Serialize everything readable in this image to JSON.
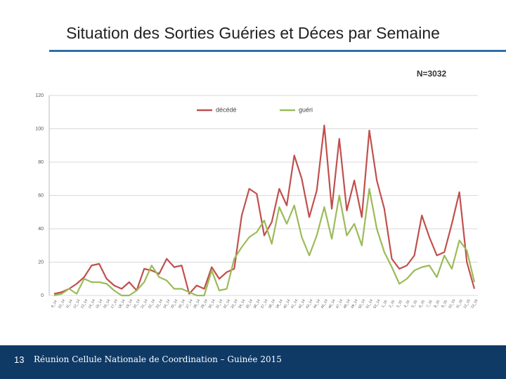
{
  "title": "Situation des Sorties Guéries et Déces par Semaine",
  "page_number": "13",
  "footer": "Réunion Cellule Nationale de Coordination – Guinée 2015",
  "chart_data": {
    "type": "line",
    "annotation": "N=3032",
    "categories": [
      "9_14",
      "10_14",
      "11_14",
      "12_14",
      "13_14",
      "14_14",
      "15_14",
      "16_14",
      "17_14",
      "18_14",
      "19_14",
      "20_14",
      "21_14",
      "22_14",
      "23_14",
      "24_14",
      "25_14",
      "26_14",
      "27_14",
      "28_14",
      "29_14",
      "30_14",
      "31_14",
      "32_14",
      "33_14",
      "34_14",
      "35_14",
      "36_14",
      "37_14",
      "38_14",
      "39_14",
      "40_14",
      "41_14",
      "42_14",
      "43_14",
      "44_14",
      "45_14",
      "46_14",
      "47_14",
      "48_14",
      "49_14",
      "50_14",
      "51_14",
      "52_14",
      "1_15",
      "2_15",
      "3_15",
      "4_15",
      "5_15",
      "6_15",
      "7_15",
      "8_15",
      "9_15",
      "10_15",
      "11_15",
      "12_15",
      "13_15"
    ],
    "series": [
      {
        "name": "décédé",
        "color": "#c0504d",
        "values": [
          1,
          2,
          4,
          7,
          11,
          18,
          19,
          10,
          6,
          4,
          8,
          3,
          16,
          15,
          13,
          22,
          17,
          18,
          1,
          6,
          4,
          17,
          10,
          14,
          16,
          48,
          64,
          61,
          36,
          44,
          64,
          54,
          84,
          70,
          47,
          63,
          102,
          52,
          94,
          51,
          69,
          47,
          99,
          69,
          52,
          22,
          16,
          18,
          24,
          48,
          35,
          24,
          26,
          43,
          62,
          20,
          4
        ]
      },
      {
        "name": "guéri",
        "color": "#9bbb59",
        "values": [
          0,
          1,
          4,
          1,
          10,
          8,
          8,
          7,
          3,
          0,
          0,
          3,
          8,
          18,
          11,
          9,
          4,
          4,
          2,
          0,
          0,
          15,
          3,
          4,
          22,
          29,
          35,
          38,
          45,
          31,
          53,
          43,
          54,
          35,
          24,
          36,
          53,
          34,
          60,
          36,
          43,
          30,
          64,
          40,
          26,
          17,
          7,
          10,
          15,
          17,
          18,
          11,
          24,
          16,
          33,
          27,
          8
        ]
      }
    ],
    "ylim": [
      0,
      120
    ],
    "yticks": [
      0,
      20,
      40,
      60,
      80,
      100,
      120
    ],
    "grid": true,
    "legend": "top"
  }
}
